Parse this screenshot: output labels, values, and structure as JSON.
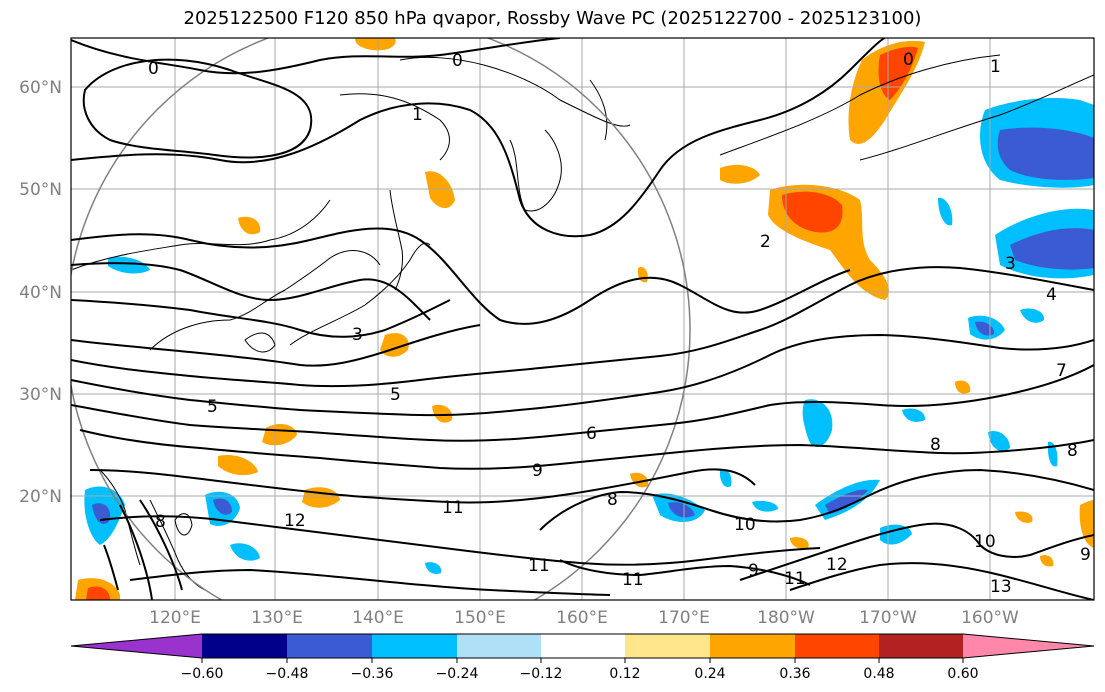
{
  "title": "2025122500 F120 850 hPa qvapor, Rossby Wave PC (2025122700 - 2025123100)",
  "map": {
    "lon_ticks": [
      "120°E",
      "130°E",
      "140°E",
      "150°E",
      "160°E",
      "170°E",
      "180°W",
      "170°W",
      "160°W"
    ],
    "lat_ticks": [
      "60°N",
      "50°N",
      "40°N",
      "30°N",
      "20°N"
    ],
    "contour_labels": [
      "0",
      "0",
      "0",
      "1",
      "1",
      "2",
      "3",
      "3",
      "4",
      "5",
      "5",
      "6",
      "7",
      "8",
      "8",
      "8",
      "8",
      "9",
      "9",
      "9",
      "10",
      "10",
      "11",
      "11",
      "11",
      "11",
      "12",
      "12",
      "13"
    ]
  },
  "colorbar": {
    "ticks": [
      "−0.60",
      "−0.48",
      "−0.36",
      "−0.24",
      "−0.12",
      "0.12",
      "0.24",
      "0.36",
      "0.48",
      "0.60"
    ],
    "colors": [
      "#9a32cd",
      "#00008b",
      "#3a5bd4",
      "#00bfff",
      "#b0e0f8",
      "#ffffff",
      "#ffe68c",
      "#ffa500",
      "#ff4500",
      "#b22222",
      "#ff88aa"
    ]
  }
}
